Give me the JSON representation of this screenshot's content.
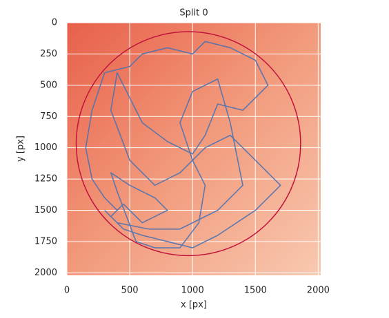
{
  "chart_data": {
    "type": "trajectory",
    "title": "Split 0",
    "xlabel": "x [px]",
    "ylabel": "y [px]",
    "xlim": [
      0,
      2020
    ],
    "ylim": [
      2020,
      0
    ],
    "xticks": [
      0,
      500,
      1000,
      1500,
      2000
    ],
    "yticks": [
      0,
      250,
      500,
      750,
      1000,
      1250,
      1500,
      1750,
      2000
    ],
    "grid": true,
    "arena": {
      "cx": 967,
      "cy": 967,
      "r": 893,
      "color": "#c0143c"
    },
    "series": [
      {
        "color": "#4c72b0",
        "x": [
          400,
          300,
          200,
          150,
          200,
          300,
          500,
          600,
          800,
          1000,
          1100,
          1300,
          1500,
          1600,
          1400,
          1200,
          1100,
          1000,
          800,
          600,
          500,
          400,
          350,
          500,
          700,
          900,
          1100,
          1300,
          1500,
          1700,
          1500,
          1200,
          1000,
          800,
          600,
          450,
          350,
          450,
          600,
          800,
          700,
          500,
          350,
          400,
          550,
          700,
          900,
          1050,
          1100,
          1000,
          900,
          1000,
          1200,
          1300,
          1400,
          1200,
          900,
          650,
          400,
          300
        ],
        "y": [
          1500,
          1400,
          1250,
          1000,
          700,
          400,
          350,
          250,
          200,
          250,
          150,
          200,
          300,
          500,
          700,
          650,
          900,
          1050,
          950,
          800,
          600,
          400,
          700,
          1100,
          1300,
          1200,
          1000,
          900,
          1100,
          1300,
          1500,
          1700,
          1800,
          1750,
          1700,
          1650,
          1550,
          1450,
          1600,
          1500,
          1400,
          1300,
          1200,
          1350,
          1750,
          1800,
          1800,
          1600,
          1300,
          1100,
          800,
          550,
          450,
          800,
          1300,
          1500,
          1650,
          1650,
          1600,
          1500
        ]
      }
    ]
  }
}
